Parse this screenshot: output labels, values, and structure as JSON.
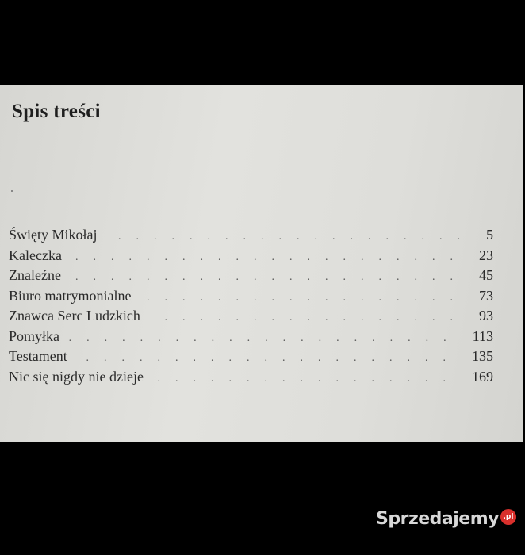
{
  "page": {
    "title": "Spis treści",
    "entries": [
      {
        "title": "Święty Mikołaj",
        "page": "5"
      },
      {
        "title": "Kaleczka",
        "page": "23"
      },
      {
        "title": "Znaleźne",
        "page": "45"
      },
      {
        "title": "Biuro matrymonialne",
        "page": "73"
      },
      {
        "title": "Znawca Serc Ludzkich",
        "page": "93"
      },
      {
        "title": "Pomyłka",
        "page": "113"
      },
      {
        "title": "Testament",
        "page": "135"
      },
      {
        "title": "Nic się nigdy nie dzieje",
        "page": "169"
      }
    ]
  },
  "watermark": {
    "brand": "Sprzedajemy",
    "tld": ".pl"
  },
  "colors": {
    "background": "#000000",
    "paper": "#dcdcd8",
    "text": "#2a2a2a",
    "watermark_accent": "#d9302c"
  }
}
